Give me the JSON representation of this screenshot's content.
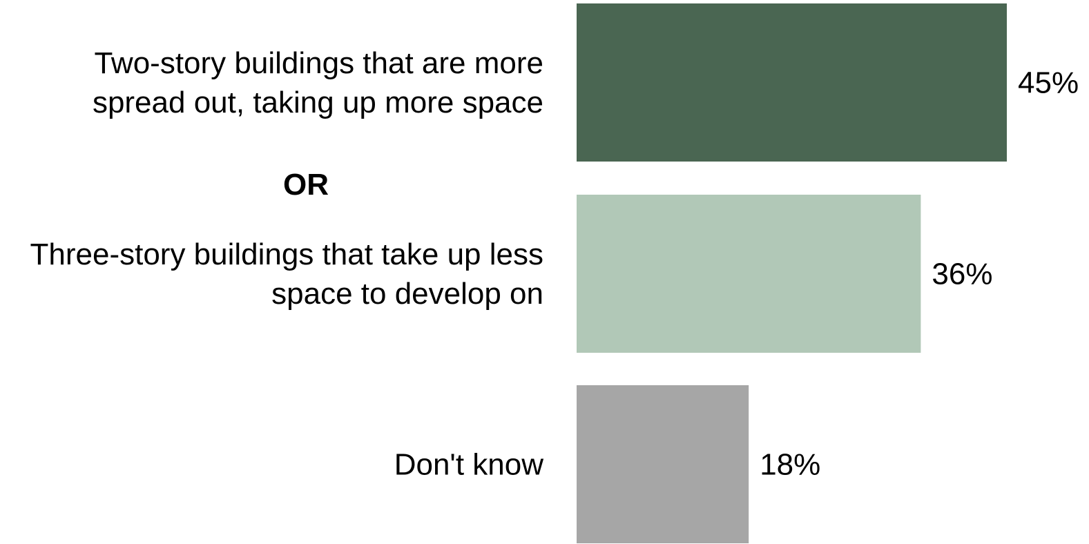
{
  "chart_data": {
    "type": "bar",
    "orientation": "horizontal",
    "categories": [
      "Two-story buildings that are more spread out, taking up more space",
      "Three-story buildings that take up less space to develop on",
      "Don't know"
    ],
    "category_lines": [
      [
        "Two-story buildings that are more",
        "spread out, taking up more space"
      ],
      [
        "Three-story buildings that take up less",
        "space to develop on"
      ],
      [
        "Don't know"
      ]
    ],
    "values": [
      45,
      36,
      18
    ],
    "value_labels": [
      "45%",
      "36%",
      "18%"
    ],
    "unit": "%",
    "separator_label": "OR",
    "colors": [
      "#4a6652",
      "#b1c8b7",
      "#a6a6a6"
    ],
    "title": "",
    "xlabel": "",
    "ylabel": "",
    "xlim": [
      0,
      45
    ],
    "grid": false,
    "legend": "none"
  }
}
